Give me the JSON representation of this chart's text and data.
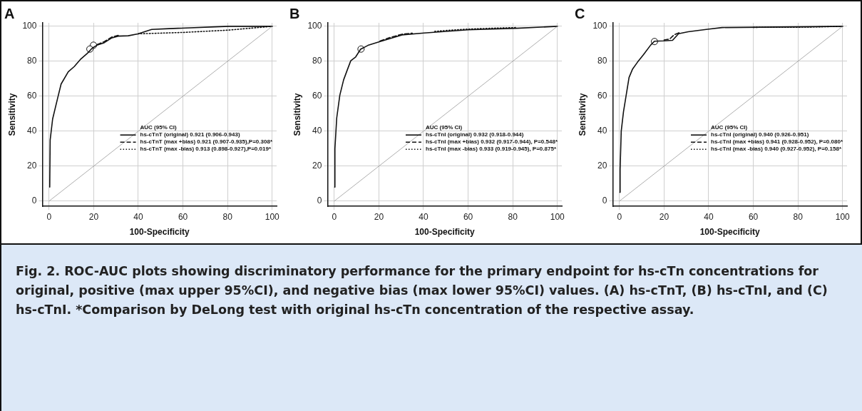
{
  "chart_data": [
    {
      "type": "line",
      "title": "A",
      "xlabel": "100-Specificity",
      "ylabel": "Sensitivity",
      "legend_title": "AUC (95% CI)",
      "legend": "bottom right",
      "grid": true,
      "xlim": [
        -3,
        102
      ],
      "ylim": [
        -3,
        102
      ],
      "xticks": [
        0,
        20,
        40,
        60,
        80,
        100
      ],
      "yticks": [
        0,
        20,
        40,
        60,
        80,
        100
      ],
      "annotations": [
        "Fig. 2.  ROC-AUC plots showing discriminatory performance for the primary endpoint for hs-cTn concentrations for original, positive (max upper 95%CI), and negative bias (max lower 95%CI) values. (A) hs-cTnT, (B) hs-cTnI, and (C) hs-cTnI. *Comparison by DeLong test with original hs-cTn concentration of the respective assay."
      ],
      "series": [
        {
          "type": "line",
          "color": "#999999",
          "x": [
            0,
            100
          ],
          "values": [
            0,
            100
          ]
        },
        {
          "name": "hs-cTnT (original) 0.921 (0.906-0.943)",
          "color": "#111111",
          "line_style": "solid",
          "x": [
            0.3,
            0.5,
            1.6,
            3.8,
            5.4,
            8.6,
            11.3,
            14,
            17.2,
            19.4,
            21.5,
            24.7,
            28,
            31,
            35.5,
            39.8,
            46,
            53.8,
            80.6,
            100
          ],
          "values": [
            8,
            35,
            47,
            58.7,
            67,
            74,
            77,
            81,
            84.6,
            87.6,
            89.2,
            90.6,
            93.3,
            94.4,
            94.6,
            95.7,
            98.2,
            98.7,
            100,
            100
          ]
        },
        {
          "name": "hs-cTnT (max +bias) 0.921 (0.907-0.935),P=0.308*",
          "color": "#111111",
          "line_style": "dashed",
          "x": [
            21.5,
            24.7,
            28,
            31
          ],
          "values": [
            89.6,
            91.2,
            93.8,
            94.8
          ]
        },
        {
          "name": "hs-cTnT (max -bias) 0.913 (0.898-0.927),P=0.019*",
          "color": "#111111",
          "line_style": "dotted",
          "x": [
            39.8,
            60,
            80,
            100
          ],
          "values": [
            95.7,
            96.5,
            97.8,
            100
          ]
        },
        {
          "type": "scatter",
          "color": "#111111",
          "marker": "circle",
          "x": [
            19.9,
            18.3
          ],
          "values": [
            89.2,
            87
          ]
        }
      ]
    },
    {
      "type": "line",
      "title": "B",
      "xlabel": "100-Specificity",
      "ylabel": "Sensitivity",
      "legend_title": "AUC (95% CI)",
      "legend": "bottom right",
      "grid": true,
      "xlim": [
        -3,
        102
      ],
      "ylim": [
        -3,
        102
      ],
      "xticks": [
        0,
        20,
        40,
        60,
        80,
        100
      ],
      "yticks": [
        0,
        20,
        40,
        60,
        80,
        100
      ],
      "series": [
        {
          "type": "line",
          "color": "#999999",
          "x": [
            0,
            100
          ],
          "values": [
            0,
            100
          ]
        },
        {
          "name": "hs-cTnI (original) 0.932 (0.918-0.944)",
          "color": "#111111",
          "line_style": "solid",
          "x": [
            0.2,
            0.3,
            1.1,
            2.5,
            4.2,
            5.8,
            7.4,
            9.6,
            11.8,
            15.1,
            20.5,
            30.4,
            40.3,
            60,
            81.7,
            100
          ],
          "values": [
            8,
            30,
            47.5,
            60.6,
            69.4,
            74.9,
            80.3,
            82.5,
            86.9,
            89.1,
            91.3,
            95.1,
            96.2,
            98,
            98.9,
            100
          ]
        },
        {
          "name": "hs-cTnI (max +bias) 0.932 (0.917-0.944), P=0.548*",
          "color": "#111111",
          "line_style": "dashed",
          "x": [
            20.5,
            25,
            30.4,
            35
          ],
          "values": [
            91.6,
            93.6,
            95.5,
            96.1
          ]
        },
        {
          "name": "hs-cTnI (max -bias) 0.933 (0.919-0.945), P=0.875*",
          "color": "#111111",
          "line_style": "dotted",
          "x": [
            45,
            50,
            60,
            70,
            81.7
          ],
          "values": [
            97.1,
            97.6,
            98.4,
            98.9,
            99.3
          ]
        },
        {
          "type": "scatter",
          "color": "#111111",
          "marker": "circle",
          "x": [
            12
          ],
          "values": [
            87
          ]
        }
      ]
    },
    {
      "type": "line",
      "title": "C",
      "xlabel": "100-Specificity",
      "ylabel": "Sensitivity",
      "legend_title": "AUC (95% CI)",
      "legend": "bottom right",
      "grid": true,
      "xlim": [
        -3,
        102
      ],
      "ylim": [
        -3,
        102
      ],
      "xticks": [
        0,
        20,
        40,
        60,
        80,
        100
      ],
      "yticks": [
        0,
        20,
        40,
        60,
        80,
        100
      ],
      "series": [
        {
          "type": "line",
          "color": "#999999",
          "x": [
            0,
            100
          ],
          "values": [
            0,
            100
          ]
        },
        {
          "name": "hs-cTnI (original) 0.940 (0.926-0.951)",
          "color": "#111111",
          "line_style": "solid",
          "x": [
            0.2,
            0.3,
            0.8,
            1.8,
            3.2,
            4.3,
            5.9,
            8.1,
            10.8,
            14,
            15.7,
            20,
            23.8,
            26.5,
            30.8,
            39.5,
            46,
            80.5,
            100
          ],
          "values": [
            5,
            18.3,
            40,
            51,
            62,
            70.7,
            75.6,
            79.5,
            83.8,
            89.3,
            91.5,
            91.7,
            92,
            95.8,
            96.9,
            98.3,
            99.3,
            99.7,
            100
          ]
        },
        {
          "name": "hs-cTnI (max +bias) 0.941 (0.928-0.952), P=0.080*",
          "color": "#111111",
          "line_style": "dashed",
          "x": [
            20,
            22.5,
            24.5,
            27
          ],
          "values": [
            92.2,
            92.7,
            95.2,
            96.5
          ]
        },
        {
          "name": "hs-cTnI (max -bias) 0.940 (0.927-0.952), P=0.158*",
          "color": "#111111",
          "line_style": "dotted",
          "x": [
            60,
            70,
            80.5,
            90,
            100
          ],
          "values": [
            99.4,
            99.5,
            99.5,
            99.7,
            100
          ]
        },
        {
          "type": "scatter",
          "color": "#111111",
          "marker": "circle",
          "x": [
            15.7
          ],
          "values": [
            91.3
          ]
        }
      ]
    }
  ]
}
